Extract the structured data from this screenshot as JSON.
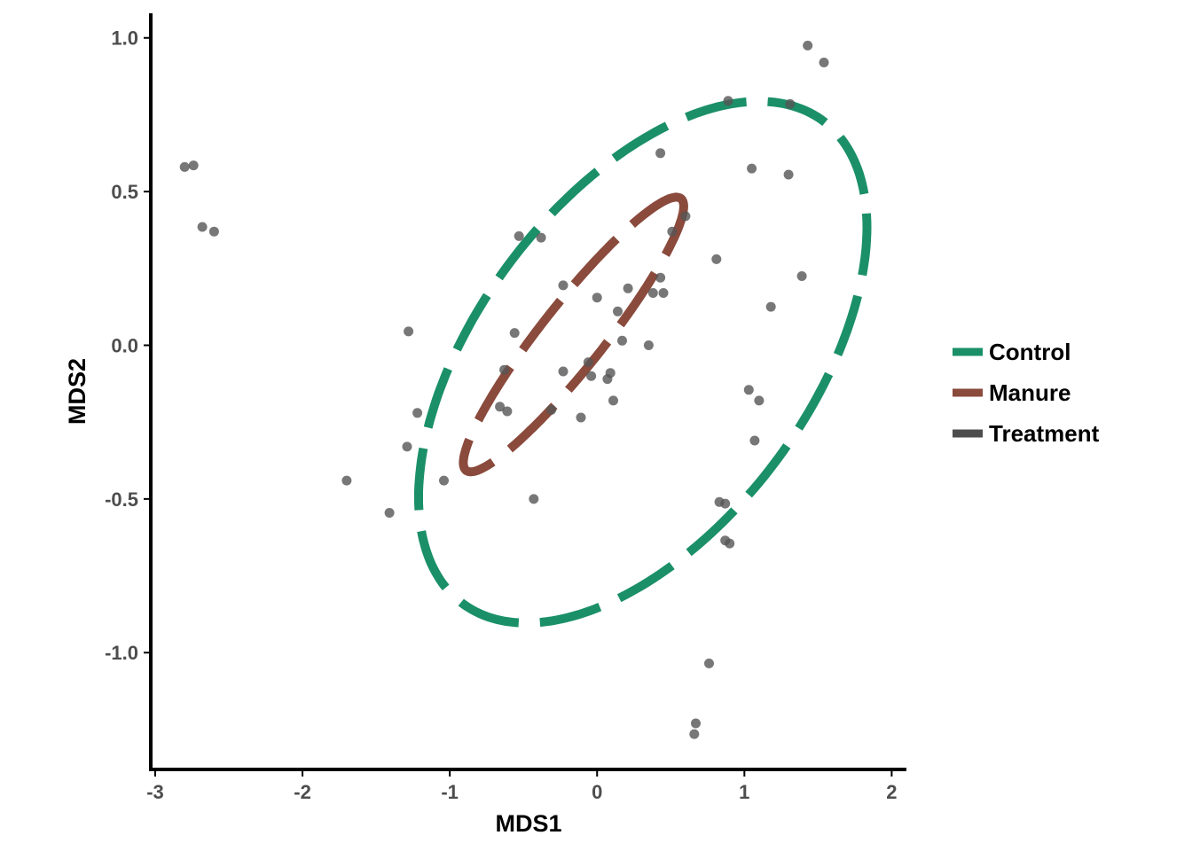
{
  "chart_data": {
    "type": "scatter",
    "xlabel": "MDS1",
    "ylabel": "MDS2",
    "xlim": [
      -3.03,
      2.1
    ],
    "ylim": [
      -1.38,
      1.08
    ],
    "x_ticks": [
      -3,
      -2,
      -1,
      0,
      1,
      2
    ],
    "x_tick_labels": [
      "-3",
      "-2",
      "-1",
      "0",
      "1",
      "2"
    ],
    "y_ticks": [
      1.0,
      0.5,
      0.0,
      -0.5,
      -1.0
    ],
    "y_tick_labels": [
      "1.0",
      "0.5",
      "0.0",
      "-0.5",
      "-1.0"
    ],
    "grid": false,
    "legend_position": "right",
    "point_color": "#555555",
    "points": [
      {
        "x": -2.8,
        "y": 0.58
      },
      {
        "x": -2.74,
        "y": 0.585
      },
      {
        "x": -2.68,
        "y": 0.385
      },
      {
        "x": -2.6,
        "y": 0.37
      },
      {
        "x": -1.7,
        "y": -0.44
      },
      {
        "x": -1.41,
        "y": -0.545
      },
      {
        "x": -1.29,
        "y": -0.33
      },
      {
        "x": -1.28,
        "y": 0.045
      },
      {
        "x": -1.22,
        "y": -0.22
      },
      {
        "x": -1.04,
        "y": -0.44
      },
      {
        "x": -0.66,
        "y": -0.2
      },
      {
        "x": -0.63,
        "y": -0.08
      },
      {
        "x": -0.61,
        "y": -0.215
      },
      {
        "x": -0.56,
        "y": 0.04
      },
      {
        "x": -0.53,
        "y": 0.355
      },
      {
        "x": -0.43,
        "y": -0.5
      },
      {
        "x": -0.38,
        "y": 0.35
      },
      {
        "x": -0.31,
        "y": -0.21
      },
      {
        "x": -0.23,
        "y": -0.085
      },
      {
        "x": -0.23,
        "y": 0.195
      },
      {
        "x": -0.11,
        "y": -0.235
      },
      {
        "x": -0.06,
        "y": -0.055
      },
      {
        "x": -0.04,
        "y": -0.1
      },
      {
        "x": 0.0,
        "y": 0.155
      },
      {
        "x": 0.07,
        "y": -0.11
      },
      {
        "x": 0.09,
        "y": -0.09
      },
      {
        "x": 0.11,
        "y": -0.18
      },
      {
        "x": 0.14,
        "y": 0.11
      },
      {
        "x": 0.17,
        "y": 0.015
      },
      {
        "x": 0.21,
        "y": 0.185
      },
      {
        "x": 0.35,
        "y": 0.0
      },
      {
        "x": 0.38,
        "y": 0.17
      },
      {
        "x": 0.43,
        "y": 0.625
      },
      {
        "x": 0.43,
        "y": 0.22
      },
      {
        "x": 0.45,
        "y": 0.17
      },
      {
        "x": 0.51,
        "y": 0.37
      },
      {
        "x": 0.6,
        "y": 0.42
      },
      {
        "x": 0.81,
        "y": 0.28
      },
      {
        "x": 0.83,
        "y": -0.51
      },
      {
        "x": 0.87,
        "y": -0.515
      },
      {
        "x": 0.87,
        "y": -0.635
      },
      {
        "x": 0.89,
        "y": 0.795
      },
      {
        "x": 0.9,
        "y": -0.645
      },
      {
        "x": 1.03,
        "y": -0.145
      },
      {
        "x": 1.05,
        "y": 0.575
      },
      {
        "x": 1.07,
        "y": -0.31
      },
      {
        "x": 1.1,
        "y": -0.18
      },
      {
        "x": 1.18,
        "y": 0.125
      },
      {
        "x": 1.3,
        "y": 0.555
      },
      {
        "x": 1.31,
        "y": 0.785
      },
      {
        "x": 1.39,
        "y": 0.225
      },
      {
        "x": 1.43,
        "y": 0.975
      },
      {
        "x": 1.54,
        "y": 0.92
      },
      {
        "x": 0.76,
        "y": -1.035
      },
      {
        "x": 0.67,
        "y": -1.23
      },
      {
        "x": 0.66,
        "y": -1.265
      }
    ],
    "series": [
      {
        "name": "Control",
        "color": "#1b9068",
        "ellipse": {
          "center": [
            0.31,
            -0.055
          ],
          "semi_axis_a": 1.6,
          "semi_axis_b": 0.69,
          "angle_deg": 20
        }
      },
      {
        "name": "Manure",
        "color": "#8a4a3c",
        "ellipse": {
          "center": [
            -0.16,
            0.035
          ],
          "semi_axis_a": 0.86,
          "semi_axis_b": 0.14,
          "angle_deg": 30
        }
      },
      {
        "name": "Treatment",
        "color": "#4d4d4d",
        "ellipse": null
      }
    ]
  }
}
